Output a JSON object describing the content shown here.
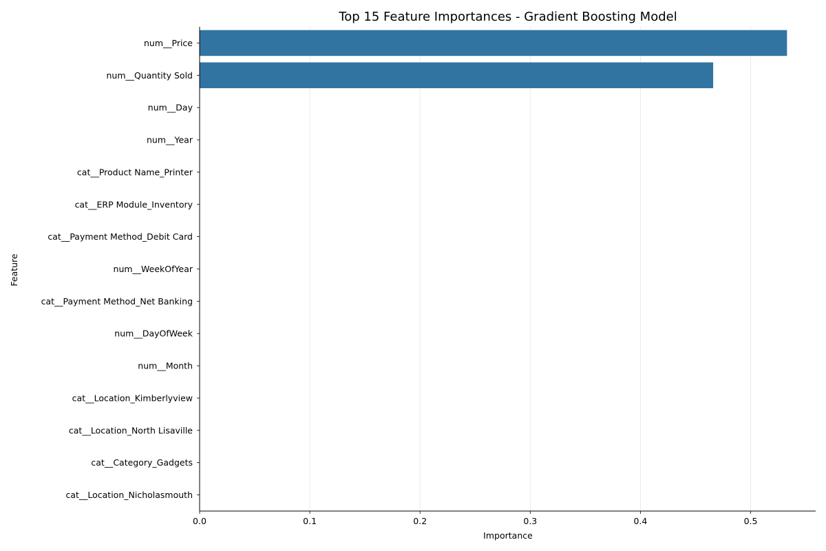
{
  "chart_data": {
    "type": "bar",
    "orientation": "horizontal",
    "title": "Top 15 Feature Importances - Gradient Boosting Model",
    "xlabel": "Importance",
    "ylabel": "Feature",
    "xlim": [
      0,
      0.559
    ],
    "xticks": [
      0.0,
      0.1,
      0.2,
      0.3,
      0.4,
      0.5
    ],
    "xtick_labels": [
      "0.0",
      "0.1",
      "0.2",
      "0.3",
      "0.4",
      "0.5"
    ],
    "grid": {
      "x": true,
      "y": false
    },
    "bar_color": "#3274a1",
    "categories": [
      "num__Price",
      "num__Quantity Sold",
      "num__Day",
      "num__Year",
      "cat__Product Name_Printer",
      "cat__ERP Module_Inventory",
      "cat__Payment Method_Debit Card",
      "num__WeekOfYear",
      "cat__Payment Method_Net Banking",
      "num__DayOfWeek",
      "num__Month",
      "cat__Location_Kimberlyview",
      "cat__Location_North Lisaville",
      "cat__Category_Gadgets",
      "cat__Location_Nicholasmouth"
    ],
    "values": [
      0.533,
      0.466,
      0.0,
      0.0,
      0.0,
      0.0,
      0.0,
      0.0,
      0.0,
      0.0,
      0.0,
      0.0,
      0.0,
      0.0,
      0.0
    ]
  }
}
